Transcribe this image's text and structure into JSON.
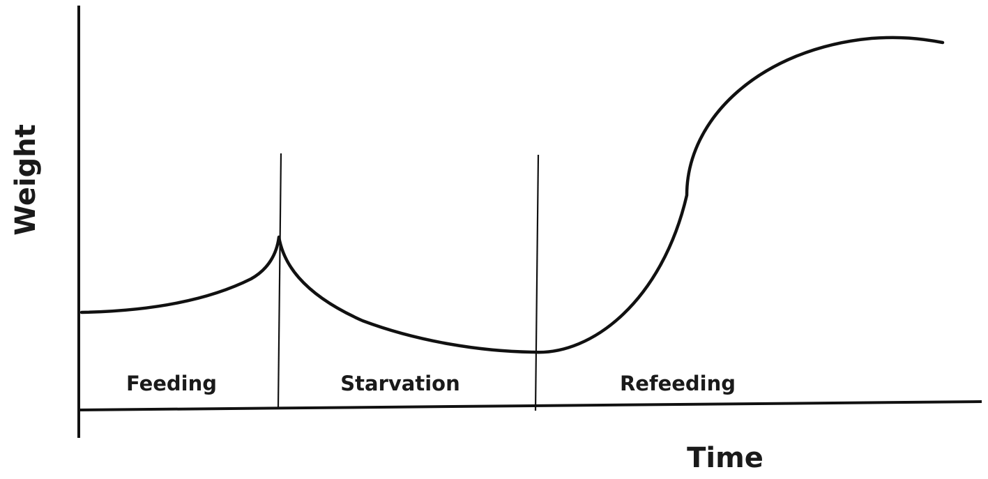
{
  "chart_data": {
    "type": "line",
    "title": "",
    "xlabel": "Time",
    "ylabel": "Weight",
    "grid": false,
    "phases": [
      {
        "label": "Feeding"
      },
      {
        "label": "Starvation"
      },
      {
        "label": "Refeeding"
      }
    ],
    "phase_boundaries": [
      0.227,
      0.522
    ],
    "series": [
      {
        "x": [
          0.0,
          0.08,
          0.16,
          0.227,
          0.3,
          0.4,
          0.52,
          0.58,
          0.66,
          0.7,
          0.77,
          0.88,
          1.0
        ],
        "y": [
          0.27,
          0.29,
          0.36,
          0.48,
          0.24,
          0.14,
          0.16,
          0.2,
          0.4,
          0.62,
          0.92,
          1.0,
          1.0
        ]
      }
    ]
  }
}
